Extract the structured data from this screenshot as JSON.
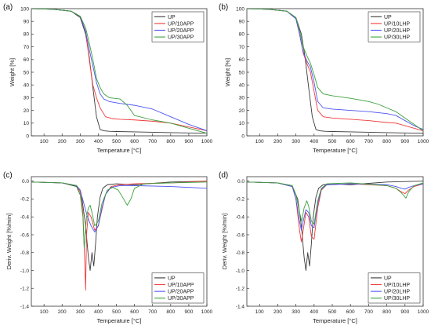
{
  "chart_data": [
    {
      "panel_label": "(a)",
      "type": "line",
      "xlabel": "Temperature [°C]",
      "ylabel": "Weight [%]",
      "xlim": [
        30,
        1000
      ],
      "ylim": [
        0,
        100
      ],
      "xticks": [
        100,
        200,
        300,
        400,
        500,
        600,
        700,
        800,
        900,
        1000
      ],
      "yticks": [
        0,
        10,
        20,
        30,
        40,
        50,
        60,
        70,
        80,
        90,
        100
      ],
      "legend": "top-right",
      "series": [
        {
          "name": "UP",
          "color": "#3a3a3a",
          "x": [
            30,
            150,
            250,
            300,
            330,
            350,
            370,
            390,
            410,
            430,
            460,
            500,
            600,
            700,
            800,
            900,
            1000
          ],
          "y": [
            100,
            99.5,
            98,
            93,
            80,
            62,
            38,
            15,
            5,
            4,
            3.6,
            3.4,
            3.1,
            2.8,
            2.5,
            2.3,
            2.1
          ]
        },
        {
          "name": "UP/10APP",
          "color": "#ef3b3b",
          "x": [
            30,
            150,
            250,
            300,
            330,
            350,
            370,
            390,
            410,
            440,
            480,
            520,
            600,
            700,
            800,
            900,
            1000
          ],
          "y": [
            100,
            99.5,
            98,
            94,
            82,
            60,
            40,
            30,
            22,
            15,
            13.5,
            13,
            12.5,
            11.5,
            10,
            7,
            4
          ]
        },
        {
          "name": "UP/20APP",
          "color": "#4b53f2",
          "x": [
            30,
            150,
            250,
            300,
            330,
            350,
            370,
            390,
            410,
            430,
            460,
            520,
            600,
            700,
            800,
            900,
            1000
          ],
          "y": [
            100,
            99.5,
            98,
            94,
            82,
            68,
            55,
            42,
            33,
            29,
            27,
            25.5,
            24,
            21,
            15,
            9,
            4
          ]
        },
        {
          "name": "UP/30APP",
          "color": "#3ba13b",
          "x": [
            30,
            150,
            250,
            300,
            330,
            350,
            370,
            390,
            410,
            430,
            460,
            520,
            560,
            600,
            700,
            800,
            900,
            1000
          ],
          "y": [
            100,
            99.5,
            98,
            94,
            85,
            73,
            60,
            45,
            38,
            33,
            30,
            29,
            24,
            16,
            12.5,
            10,
            6,
            2
          ]
        }
      ]
    },
    {
      "panel_label": "(b)",
      "type": "line",
      "xlabel": "Temperature [°C]",
      "ylabel": "Weight [%]",
      "xlim": [
        30,
        1000
      ],
      "ylim": [
        0,
        100
      ],
      "xticks": [
        100,
        200,
        300,
        400,
        500,
        600,
        700,
        800,
        900,
        1000
      ],
      "yticks": [
        0,
        10,
        20,
        30,
        40,
        50,
        60,
        70,
        80,
        90,
        100
      ],
      "legend": "top-right",
      "series": [
        {
          "name": "UP",
          "color": "#3a3a3a",
          "x": [
            30,
            150,
            250,
            300,
            330,
            350,
            370,
            390,
            410,
            430,
            460,
            500,
            600,
            700,
            800,
            900,
            1000
          ],
          "y": [
            100,
            99.5,
            98,
            93,
            80,
            62,
            38,
            15,
            5,
            4,
            3.6,
            3.4,
            3.1,
            2.8,
            2.5,
            2.3,
            2.1
          ]
        },
        {
          "name": "UP/10LHP",
          "color": "#ef3b3b",
          "x": [
            30,
            150,
            250,
            300,
            320,
            340,
            360,
            380,
            400,
            420,
            450,
            500,
            600,
            700,
            800,
            850,
            900,
            950,
            1000
          ],
          "y": [
            100,
            99.5,
            98,
            92,
            80,
            65,
            57,
            50,
            35,
            20,
            15,
            14,
            13,
            12,
            10.5,
            10,
            8,
            6,
            4
          ]
        },
        {
          "name": "UP/20LHP",
          "color": "#4b53f2",
          "x": [
            30,
            150,
            250,
            300,
            320,
            340,
            360,
            380,
            400,
            420,
            450,
            500,
            600,
            700,
            800,
            850,
            900,
            950,
            1000
          ],
          "y": [
            100,
            99.5,
            98,
            92,
            80,
            66,
            59,
            54,
            42,
            27,
            22,
            21,
            20,
            19,
            17.5,
            16,
            12,
            8,
            5
          ]
        },
        {
          "name": "UP/30LHP",
          "color": "#3ba13b",
          "x": [
            30,
            150,
            250,
            300,
            320,
            340,
            360,
            380,
            400,
            420,
            450,
            500,
            600,
            700,
            750,
            800,
            850,
            900,
            950,
            1000
          ],
          "y": [
            100,
            99.5,
            98,
            93,
            83,
            70,
            63,
            57,
            48,
            38,
            33,
            31.5,
            29.5,
            27,
            25,
            22,
            19,
            14,
            9,
            4
          ]
        }
      ]
    },
    {
      "panel_label": "(c)",
      "type": "line",
      "xlabel": "Temperature [°C]",
      "ylabel": "Deriv. Weight [%/min]",
      "xlim": [
        30,
        1000
      ],
      "ylim": [
        -1.4,
        0.05
      ],
      "xticks": [
        100,
        200,
        300,
        400,
        500,
        600,
        700,
        800,
        900,
        1000
      ],
      "yticks": [
        -1.4,
        -1.2,
        -1.0,
        -0.8,
        -0.6,
        -0.4,
        -0.2,
        0.0
      ],
      "legend": "bottom-right",
      "series": [
        {
          "name": "UP",
          "color": "#3a3a3a",
          "x": [
            30,
            200,
            280,
            310,
            330,
            345,
            355,
            365,
            375,
            385,
            395,
            410,
            425,
            450,
            500,
            600,
            800,
            1000
          ],
          "y": [
            -0.01,
            -0.02,
            -0.06,
            -0.2,
            -0.5,
            -0.85,
            -1.0,
            -0.8,
            -0.95,
            -0.7,
            -0.4,
            -0.18,
            -0.08,
            -0.04,
            -0.03,
            -0.04,
            -0.01,
            0.0
          ]
        },
        {
          "name": "UP/10APP",
          "color": "#ef3b3b",
          "x": [
            30,
            200,
            280,
            300,
            315,
            325,
            330,
            335,
            345,
            360,
            380,
            400,
            420,
            440,
            470,
            520,
            600,
            800,
            1000
          ],
          "y": [
            -0.01,
            -0.02,
            -0.05,
            -0.12,
            -0.35,
            -0.9,
            -1.22,
            -0.6,
            -0.35,
            -0.4,
            -0.55,
            -0.5,
            -0.32,
            -0.15,
            -0.06,
            -0.04,
            -0.03,
            -0.02,
            0.0
          ]
        },
        {
          "name": "UP/20APP",
          "color": "#4b53f2",
          "x": [
            30,
            200,
            280,
            300,
            320,
            340,
            360,
            380,
            400,
            420,
            440,
            470,
            520,
            600,
            800,
            1000
          ],
          "y": [
            -0.01,
            -0.02,
            -0.05,
            -0.1,
            -0.25,
            -0.4,
            -0.5,
            -0.57,
            -0.5,
            -0.3,
            -0.15,
            -0.07,
            -0.05,
            -0.05,
            -0.06,
            -0.08
          ]
        },
        {
          "name": "UP/30APP",
          "color": "#3ba13b",
          "x": [
            30,
            200,
            280,
            300,
            315,
            322,
            328,
            335,
            345,
            355,
            365,
            380,
            400,
            420,
            450,
            480,
            510,
            540,
            560,
            580,
            600,
            650,
            800,
            1000
          ],
          "y": [
            -0.01,
            -0.02,
            -0.05,
            -0.15,
            -0.4,
            -0.75,
            -0.6,
            -0.4,
            -0.3,
            -0.27,
            -0.35,
            -0.5,
            -0.45,
            -0.25,
            -0.1,
            -0.07,
            -0.1,
            -0.2,
            -0.27,
            -0.2,
            -0.08,
            -0.03,
            -0.02,
            -0.01
          ]
        }
      ]
    },
    {
      "panel_label": "(d)",
      "type": "line",
      "xlabel": "Temperature [°C]",
      "ylabel": "Deriv. Weight [%/min]",
      "xlim": [
        30,
        1000
      ],
      "ylim": [
        -1.4,
        0.05
      ],
      "xticks": [
        100,
        200,
        300,
        400,
        500,
        600,
        700,
        800,
        900,
        1000
      ],
      "yticks": [
        -1.4,
        -1.2,
        -1.0,
        -0.8,
        -0.6,
        -0.4,
        -0.2,
        0.0
      ],
      "legend": "bottom-right",
      "series": [
        {
          "name": "UP",
          "color": "#3a3a3a",
          "x": [
            30,
            200,
            280,
            310,
            330,
            345,
            355,
            365,
            375,
            385,
            395,
            410,
            425,
            450,
            500,
            600,
            800,
            1000
          ],
          "y": [
            -0.01,
            -0.02,
            -0.06,
            -0.2,
            -0.5,
            -0.85,
            -1.0,
            -0.8,
            -0.95,
            -0.7,
            -0.4,
            -0.18,
            -0.08,
            -0.04,
            -0.03,
            -0.04,
            -0.01,
            0.0
          ]
        },
        {
          "name": "UP/10LHP",
          "color": "#ef3b3b",
          "x": [
            30,
            200,
            280,
            300,
            320,
            330,
            340,
            355,
            370,
            385,
            400,
            420,
            440,
            470,
            600,
            800,
            850,
            880,
            900,
            920,
            950,
            1000
          ],
          "y": [
            -0.01,
            -0.02,
            -0.06,
            -0.2,
            -0.55,
            -0.68,
            -0.55,
            -0.35,
            -0.4,
            -0.62,
            -0.65,
            -0.3,
            -0.1,
            -0.04,
            -0.03,
            -0.05,
            -0.08,
            -0.12,
            -0.14,
            -0.1,
            -0.06,
            -0.03
          ]
        },
        {
          "name": "UP/20LHP",
          "color": "#4b53f2",
          "x": [
            30,
            200,
            280,
            300,
            320,
            330,
            340,
            355,
            370,
            385,
            400,
            420,
            440,
            470,
            600,
            800,
            850,
            880,
            900,
            920,
            950,
            1000
          ],
          "y": [
            -0.01,
            -0.02,
            -0.06,
            -0.2,
            -0.45,
            -0.55,
            -0.45,
            -0.32,
            -0.35,
            -0.5,
            -0.52,
            -0.25,
            -0.09,
            -0.04,
            -0.03,
            -0.04,
            -0.06,
            -0.08,
            -0.09,
            -0.07,
            -0.05,
            -0.03
          ]
        },
        {
          "name": "UP/30LHP",
          "color": "#3ba13b",
          "x": [
            30,
            200,
            280,
            300,
            320,
            332,
            345,
            360,
            370,
            385,
            400,
            420,
            440,
            470,
            600,
            800,
            850,
            880,
            905,
            920,
            950,
            1000
          ],
          "y": [
            -0.01,
            -0.02,
            -0.05,
            -0.15,
            -0.35,
            -0.45,
            -0.3,
            -0.22,
            -0.28,
            -0.45,
            -0.48,
            -0.22,
            -0.08,
            -0.03,
            -0.02,
            -0.05,
            -0.08,
            -0.13,
            -0.19,
            -0.12,
            -0.05,
            -0.02
          ]
        }
      ]
    }
  ]
}
